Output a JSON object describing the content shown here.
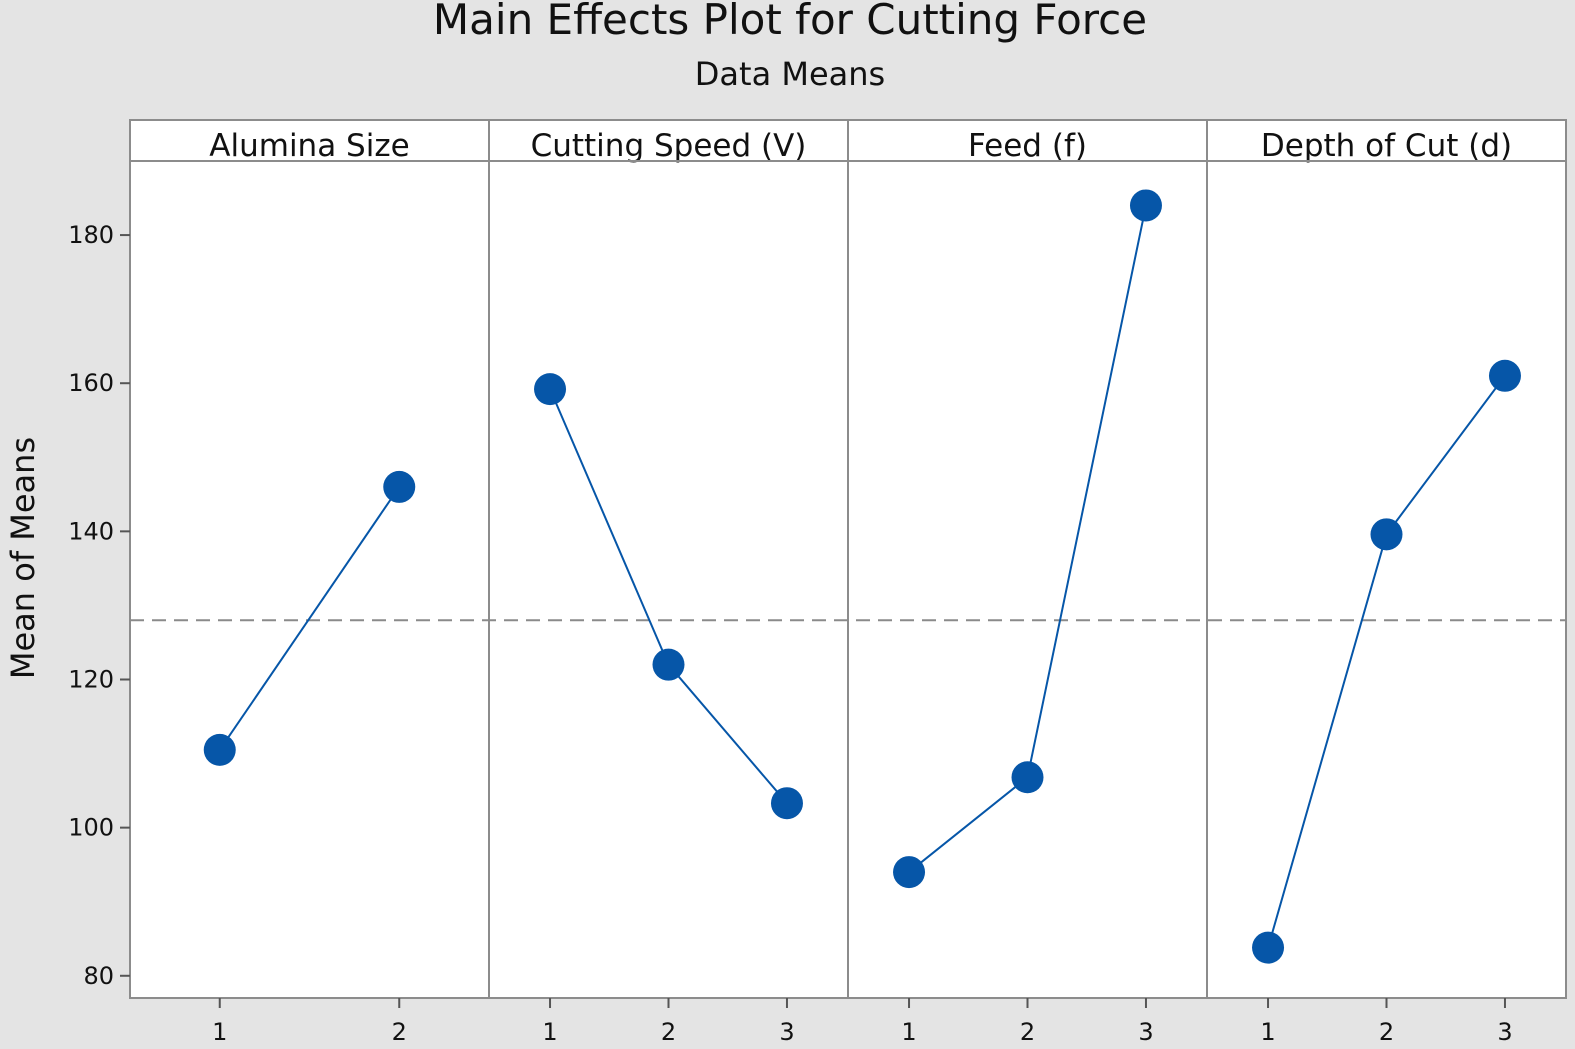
{
  "chart_data": {
    "type": "line",
    "title": "Main Effects Plot for Cutting Force",
    "subtitle": "Data Means",
    "ylabel": "Mean of Means",
    "ylim": [
      77,
      190
    ],
    "yticks": [
      80,
      100,
      120,
      140,
      160,
      180
    ],
    "reference_line": 128,
    "grid": false,
    "panels": [
      {
        "name": "Alumina Size",
        "categories": [
          "1",
          "2"
        ],
        "values": [
          110.5,
          146
        ]
      },
      {
        "name": "Cutting Speed (V)",
        "categories": [
          "1",
          "2",
          "3"
        ],
        "values": [
          159.2,
          122,
          103.3
        ]
      },
      {
        "name": "Feed (f)",
        "categories": [
          "1",
          "2",
          "3"
        ],
        "values": [
          94,
          106.8,
          184
        ]
      },
      {
        "name": "Depth of Cut (d)",
        "categories": [
          "1",
          "2",
          "3"
        ],
        "values": [
          83.8,
          139.6,
          161
        ]
      }
    ],
    "colors": {
      "series": "#0656a8",
      "reference": "#8a8a8a",
      "frame": "#8c8c8c",
      "background": "#e4e4e4",
      "panel": "#ffffff"
    }
  }
}
